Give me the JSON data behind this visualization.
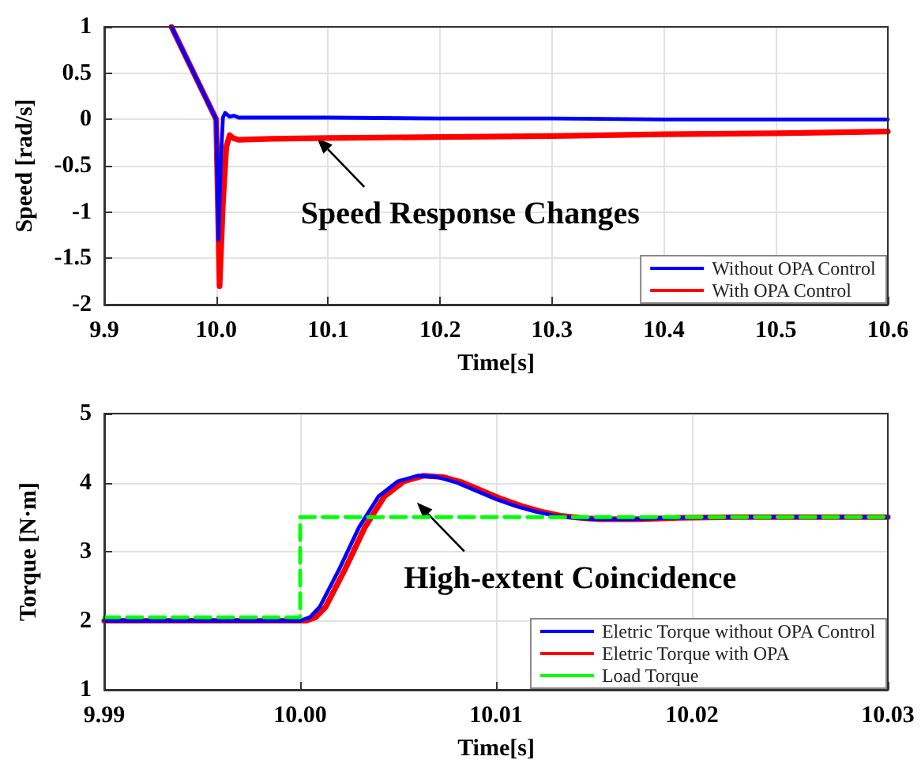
{
  "chart_data": [
    {
      "type": "line",
      "xlabel": "Time[s]",
      "ylabel": "Speed [rad/s]",
      "xlim": [
        9.9,
        10.6
      ],
      "xticks": [
        9.9,
        {
          "value": 10,
          "label": "10.0"
        },
        10.1,
        10.2,
        10.3,
        10.4,
        10.5,
        10.6
      ],
      "ylim": [
        -2,
        1
      ],
      "yticks": [
        -2,
        -1.5,
        -1,
        -0.5,
        0,
        0.5,
        1
      ],
      "grid": true,
      "legend": "bottom right",
      "marker": "none",
      "line_style": "solid",
      "annotations": [
        {
          "text": "Speed Response Changes",
          "x": 10.09,
          "y": -0.2
        }
      ],
      "series": [
        {
          "name": "Without OPA Control",
          "color": "#0000ff",
          "x": [
            9.96,
            10.0,
            10.002,
            10.004,
            10.006,
            10.008,
            10.012,
            10.016,
            10.02,
            10.05,
            10.1,
            10.2,
            10.3,
            10.4,
            10.5,
            10.6
          ],
          "values": [
            1,
            0,
            -1.3,
            -0.5,
            0.02,
            0.07,
            0.03,
            0.04,
            0.02,
            0.02,
            0.02,
            0.01,
            0.01,
            0.0,
            0.0,
            0.0
          ]
        },
        {
          "name": "With OPA Control",
          "color": "#ff0000",
          "x": [
            9.96,
            10.0,
            10.003,
            10.006,
            10.009,
            10.012,
            10.015,
            10.02,
            10.05,
            10.1,
            10.2,
            10.3,
            10.4,
            10.5,
            10.6
          ],
          "values": [
            1,
            0,
            -1.8,
            -0.9,
            -0.3,
            -0.17,
            -0.2,
            -0.22,
            -0.21,
            -0.2,
            -0.19,
            -0.18,
            -0.16,
            -0.15,
            -0.13
          ]
        }
      ]
    },
    {
      "type": "line",
      "xlabel": "Time[s]",
      "ylabel": "Torque [N·m]",
      "xlim": [
        9.99,
        10.03
      ],
      "xticks": [
        {
          "value": 9.99,
          "label": "9.99"
        },
        {
          "value": 10,
          "label": "10.00"
        },
        {
          "value": 10.01,
          "label": "10.01"
        },
        {
          "value": 10.02,
          "label": "10.02"
        },
        {
          "value": 10.03,
          "label": "10.03"
        }
      ],
      "ylim": [
        1,
        5
      ],
      "yticks": [
        1,
        2,
        3,
        4,
        5
      ],
      "grid": true,
      "legend": "bottom right",
      "marker": "none",
      "line_style": "solid",
      "annotations": [
        "High-extent Coincidence"
      ],
      "series": [
        {
          "name": "Eletric Torque without OPA Control",
          "color": "#0000ff",
          "x": [
            9.99,
            10.0,
            10.0005,
            10.001,
            10.002,
            10.003,
            10.004,
            10.005,
            10.006,
            10.007,
            10.008,
            10.009,
            10.01,
            10.011,
            10.012,
            10.013,
            10.014,
            10.015,
            10.017,
            10.019,
            10.022,
            10.03
          ],
          "values": [
            2,
            2,
            2.05,
            2.2,
            2.75,
            3.35,
            3.8,
            4.02,
            4.1,
            4.08,
            4.0,
            3.88,
            3.76,
            3.66,
            3.58,
            3.52,
            3.49,
            3.47,
            3.47,
            3.49,
            3.5,
            3.5
          ]
        },
        {
          "name": "Eletric Torque with OPA",
          "color": "#ff0000",
          "x": [
            9.99,
            10.0003,
            10.0008,
            10.0013,
            10.0023,
            10.0033,
            10.0043,
            10.0053,
            10.0063,
            10.0073,
            10.0083,
            10.0093,
            10.0103,
            10.0113,
            10.0123,
            10.0133,
            10.0143,
            10.0153,
            10.0173,
            10.0193,
            10.0223,
            10.03
          ],
          "values": [
            2,
            2,
            2.05,
            2.2,
            2.75,
            3.35,
            3.8,
            4.02,
            4.1,
            4.08,
            4.0,
            3.88,
            3.76,
            3.66,
            3.58,
            3.52,
            3.49,
            3.47,
            3.47,
            3.49,
            3.5,
            3.5
          ]
        },
        {
          "name": "Load Torque",
          "color": "#00ff00",
          "line_style": "dashed",
          "x": [
            9.99,
            10.0,
            10.0,
            10.03
          ],
          "values": [
            2.05,
            2.05,
            3.5,
            3.5
          ]
        }
      ]
    }
  ]
}
